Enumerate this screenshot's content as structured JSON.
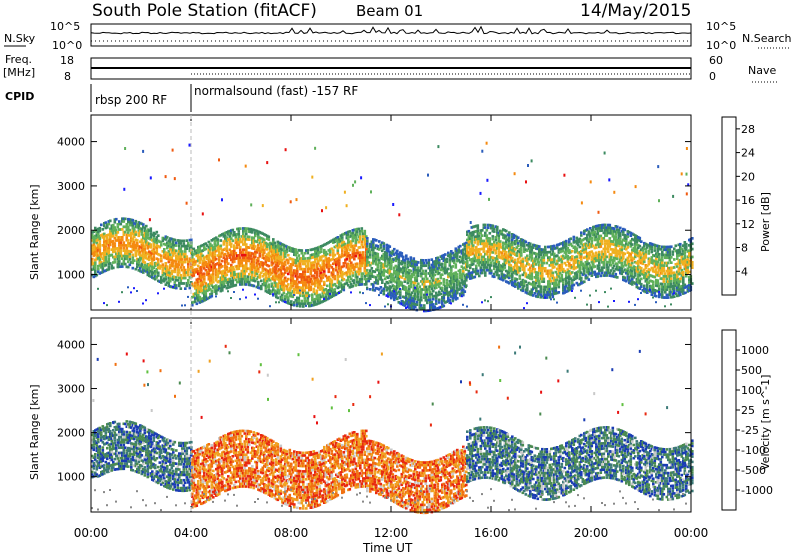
{
  "header": {
    "title": "South Pole Station (fitACF)",
    "beam": "Beam 01",
    "date": "14/May/2015"
  },
  "noise_panel": {
    "left_label": "N.Sky",
    "left_ticks": [
      "10^5",
      "10^0"
    ],
    "right_ticks": [
      "10^5",
      "10^0"
    ],
    "right_label": "N.Search"
  },
  "freq_panel": {
    "left_label_1": "Freq.",
    "left_label_2": "[MHz]",
    "left_ticks": [
      "18",
      "8"
    ],
    "right_ticks": [
      "60",
      "0"
    ],
    "right_label": "Nave"
  },
  "cpid": {
    "label": "CPID",
    "segments": [
      {
        "label": "rbsp 200 RF",
        "start_hour": 0.0
      },
      {
        "label": "normalsound (fast) -157 RF",
        "start_hour": 4.0
      }
    ]
  },
  "chart_data": [
    {
      "type": "heatmap",
      "quantity": "Power",
      "ylabel": "Slant Range [km]",
      "xlabel": "Time UT",
      "x_ticks": [
        "00:00",
        "04:00",
        "08:00",
        "12:00",
        "16:00",
        "20:00",
        "00:00"
      ],
      "xlim_hours": [
        0,
        24
      ],
      "y_ticks": [
        1000,
        2000,
        3000,
        4000
      ],
      "ylim": [
        200,
        4600
      ],
      "colorbar": {
        "label": "Power [dB]",
        "ticks": [
          "4",
          "8",
          "12",
          "16",
          "20",
          "24",
          "28"
        ],
        "range": [
          0,
          30
        ],
        "colors": [
          "#1a1aff",
          "#2a5cbc",
          "#3c8a60",
          "#5fb05a",
          "#f0b020",
          "#f58a10",
          "#f05a10",
          "#e81010"
        ]
      },
      "bands": [
        {
          "hours": [
            0,
            4
          ],
          "range_km": [
            900,
            2000
          ],
          "level": 22
        },
        {
          "hours": [
            4,
            11
          ],
          "range_km": [
            500,
            1800
          ],
          "level": 26
        },
        {
          "hours": [
            11,
            15
          ],
          "range_km": [
            400,
            1600
          ],
          "level": 14
        },
        {
          "hours": [
            15,
            24
          ],
          "range_km": [
            700,
            1900
          ],
          "level": 18
        }
      ]
    },
    {
      "type": "heatmap",
      "quantity": "Velocity",
      "ylabel": "Slant Range [km]",
      "xlabel": "Time UT",
      "x_ticks": [
        "00:00",
        "04:00",
        "08:00",
        "12:00",
        "16:00",
        "20:00",
        "00:00"
      ],
      "xlim_hours": [
        0,
        24
      ],
      "y_ticks": [
        1000,
        2000,
        3000,
        4000
      ],
      "ylim": [
        200,
        4600
      ],
      "colorbar": {
        "label": "Velocity [m s^-1]",
        "ticks": [
          "1000",
          "500",
          "100",
          "25",
          "-25",
          "-100",
          "-500",
          "-1000"
        ],
        "colors": [
          "#1a3cb4",
          "#3c7a78",
          "#4a8a50",
          "#60c040",
          "#c8c8c8",
          "#f0a020",
          "#f07010",
          "#e82a10",
          "#e81010"
        ]
      },
      "bands": [
        {
          "hours": [
            0,
            4
          ],
          "range_km": [
            900,
            2000
          ],
          "velocity": 300
        },
        {
          "hours": [
            4,
            11
          ],
          "range_km": [
            500,
            1800
          ],
          "velocity": -300
        },
        {
          "hours": [
            11,
            15
          ],
          "range_km": [
            400,
            1600
          ],
          "velocity": -500
        },
        {
          "hours": [
            15,
            24
          ],
          "range_km": [
            700,
            1900
          ],
          "velocity": 200
        }
      ]
    }
  ]
}
